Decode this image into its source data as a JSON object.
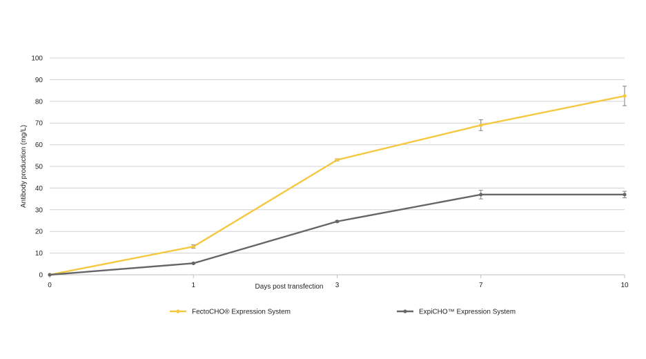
{
  "chart_data": {
    "type": "line",
    "xlabel": "Days post transfection",
    "ylabel": "Antibody production (mg/L)",
    "x_categories": [
      "0",
      "1",
      "3",
      "7",
      "10"
    ],
    "ylim": [
      0,
      100
    ],
    "y_ticks": [
      "0",
      "10",
      "20",
      "30",
      "40",
      "50",
      "60",
      "70",
      "80",
      "90",
      "100"
    ],
    "grid": true,
    "legend_position": "bottom",
    "series": [
      {
        "name": "FectoCHO® Expression System",
        "color": "#f5c842",
        "values": [
          0,
          13,
          53,
          69,
          82.5
        ],
        "errors": [
          0,
          0.8,
          0.5,
          2.5,
          4.5
        ]
      },
      {
        "name": "ExpiCHO™ Expression System",
        "color": "#666666",
        "values": [
          0,
          5.3,
          24.6,
          37,
          37
        ],
        "errors": [
          0,
          0.3,
          0.4,
          2,
          1.5
        ]
      }
    ],
    "colors": {
      "grid": "#d0d0d0",
      "axis": "#bfbfbf",
      "error_bar": "#7f7f7f"
    }
  }
}
